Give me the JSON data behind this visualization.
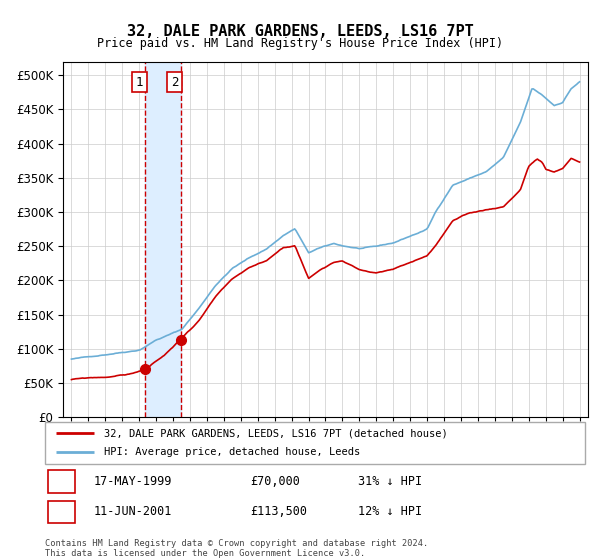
{
  "title": "32, DALE PARK GARDENS, LEEDS, LS16 7PT",
  "subtitle": "Price paid vs. HM Land Registry's House Price Index (HPI)",
  "legend_line1": "32, DALE PARK GARDENS, LEEDS, LS16 7PT (detached house)",
  "legend_line2": "HPI: Average price, detached house, Leeds",
  "footer": "Contains HM Land Registry data © Crown copyright and database right 2024.\nThis data is licensed under the Open Government Licence v3.0.",
  "transaction1_date": "17-MAY-1999",
  "transaction1_price": "£70,000",
  "transaction1_pct": "31% ↓ HPI",
  "transaction2_date": "11-JUN-2001",
  "transaction2_price": "£113,500",
  "transaction2_pct": "12% ↓ HPI",
  "sale1_year": 1999.37,
  "sale1_price": 70000,
  "sale2_year": 2001.44,
  "sale2_price": 113500,
  "hpi_color": "#6baed6",
  "price_color": "#cc0000",
  "sale_dot_color": "#cc0000",
  "shade_color": "#ddeeff",
  "vline_color": "#cc0000",
  "ylim": [
    0,
    520000
  ],
  "yticks": [
    0,
    50000,
    100000,
    150000,
    200000,
    250000,
    300000,
    350000,
    400000,
    450000,
    500000
  ],
  "xlim_start": 1994.5,
  "xlim_end": 2025.5,
  "hpi_anchors": [
    [
      1995.0,
      85000
    ],
    [
      1996.0,
      88000
    ],
    [
      1997.0,
      92000
    ],
    [
      1998.0,
      96000
    ],
    [
      1999.0,
      100000
    ],
    [
      2000.0,
      115000
    ],
    [
      2001.0,
      125000
    ],
    [
      2001.5,
      130000
    ],
    [
      2002.5,
      160000
    ],
    [
      2003.5,
      195000
    ],
    [
      2004.5,
      220000
    ],
    [
      2005.5,
      235000
    ],
    [
      2006.5,
      248000
    ],
    [
      2007.5,
      268000
    ],
    [
      2008.2,
      278000
    ],
    [
      2009.0,
      242000
    ],
    [
      2009.5,
      248000
    ],
    [
      2010.5,
      255000
    ],
    [
      2011.0,
      252000
    ],
    [
      2012.0,
      248000
    ],
    [
      2013.0,
      250000
    ],
    [
      2014.0,
      255000
    ],
    [
      2015.0,
      265000
    ],
    [
      2016.0,
      275000
    ],
    [
      2016.5,
      300000
    ],
    [
      2017.5,
      340000
    ],
    [
      2018.5,
      350000
    ],
    [
      2019.5,
      360000
    ],
    [
      2020.5,
      380000
    ],
    [
      2021.5,
      430000
    ],
    [
      2022.2,
      480000
    ],
    [
      2022.8,
      470000
    ],
    [
      2023.5,
      455000
    ],
    [
      2024.0,
      460000
    ],
    [
      2024.5,
      480000
    ],
    [
      2025.0,
      490000
    ]
  ],
  "price_anchors": [
    [
      1995.0,
      55000
    ],
    [
      1996.0,
      57000
    ],
    [
      1997.0,
      58000
    ],
    [
      1998.5,
      63000
    ],
    [
      1999.37,
      70000
    ],
    [
      2000.5,
      90000
    ],
    [
      2001.44,
      113500
    ],
    [
      2002.5,
      140000
    ],
    [
      2003.5,
      175000
    ],
    [
      2004.5,
      200000
    ],
    [
      2005.5,
      215000
    ],
    [
      2006.5,
      225000
    ],
    [
      2007.5,
      245000
    ],
    [
      2008.2,
      248000
    ],
    [
      2009.0,
      200000
    ],
    [
      2009.8,
      215000
    ],
    [
      2010.5,
      225000
    ],
    [
      2011.0,
      228000
    ],
    [
      2012.0,
      215000
    ],
    [
      2013.0,
      210000
    ],
    [
      2014.0,
      215000
    ],
    [
      2015.0,
      225000
    ],
    [
      2016.0,
      235000
    ],
    [
      2016.5,
      250000
    ],
    [
      2017.5,
      285000
    ],
    [
      2018.5,
      295000
    ],
    [
      2019.5,
      300000
    ],
    [
      2020.5,
      305000
    ],
    [
      2021.5,
      330000
    ],
    [
      2022.0,
      365000
    ],
    [
      2022.5,
      375000
    ],
    [
      2022.8,
      370000
    ],
    [
      2023.0,
      360000
    ],
    [
      2023.5,
      355000
    ],
    [
      2024.0,
      360000
    ],
    [
      2024.5,
      375000
    ],
    [
      2025.0,
      370000
    ]
  ]
}
